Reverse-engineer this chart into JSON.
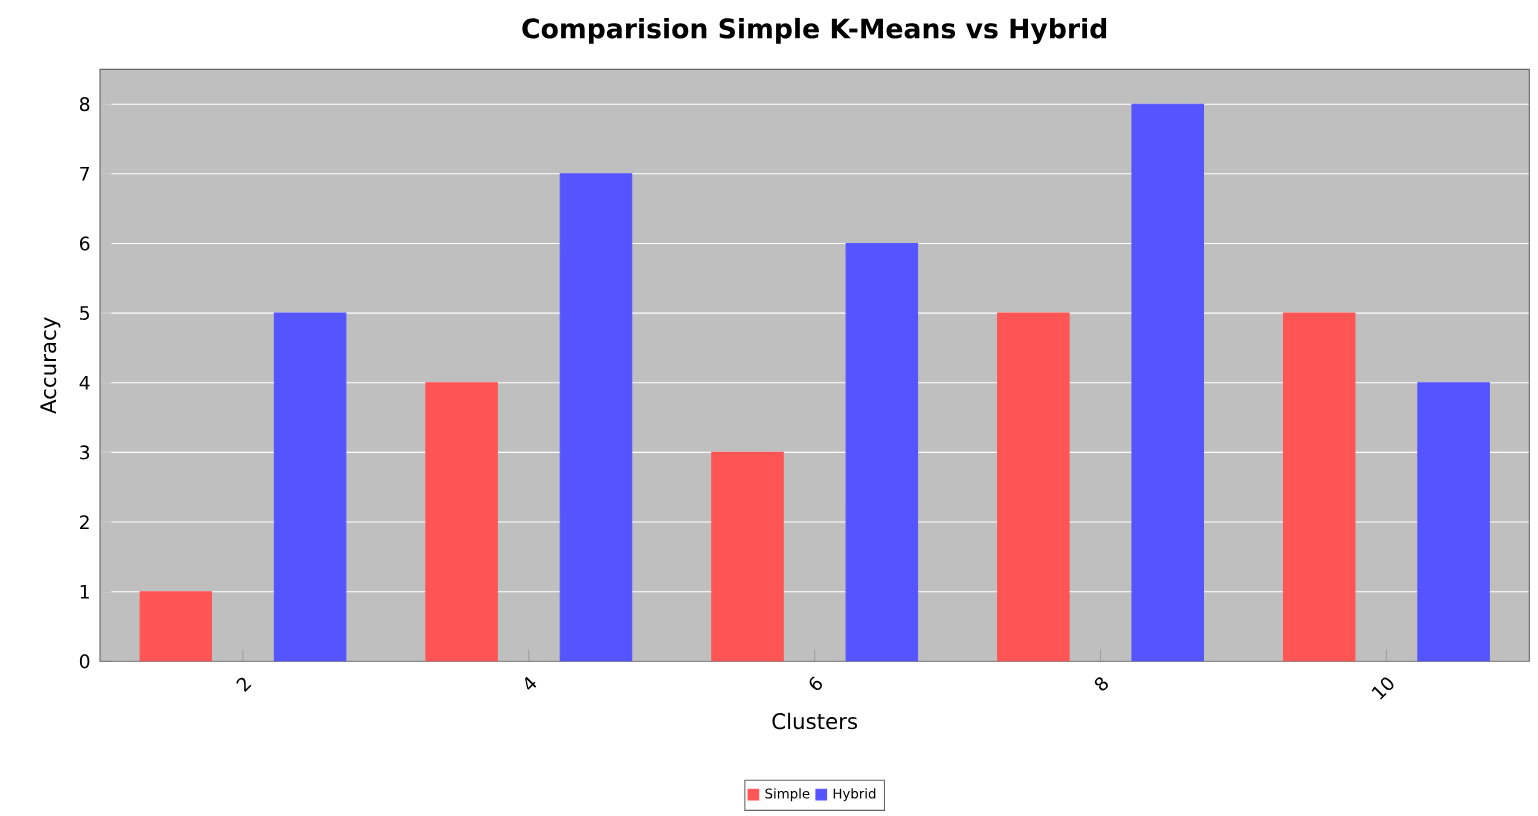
{
  "chart_data": {
    "type": "bar",
    "title": "Comparision Simple K-Means vs Hybrid",
    "xlabel": "Clusters",
    "ylabel": "Accuracy",
    "categories": [
      "2",
      "4",
      "6",
      "8",
      "10"
    ],
    "series": [
      {
        "name": "Simple",
        "color": "#ff5555",
        "values": [
          1,
          4,
          3,
          5,
          5
        ]
      },
      {
        "name": "Hybrid",
        "color": "#5555ff",
        "values": [
          5,
          7,
          6,
          8,
          4
        ]
      }
    ],
    "ylim": [
      0,
      8.5
    ],
    "yticks": [
      0,
      1,
      2,
      3,
      4,
      5,
      6,
      7,
      8
    ],
    "grid": "y",
    "legend": "bottom"
  }
}
